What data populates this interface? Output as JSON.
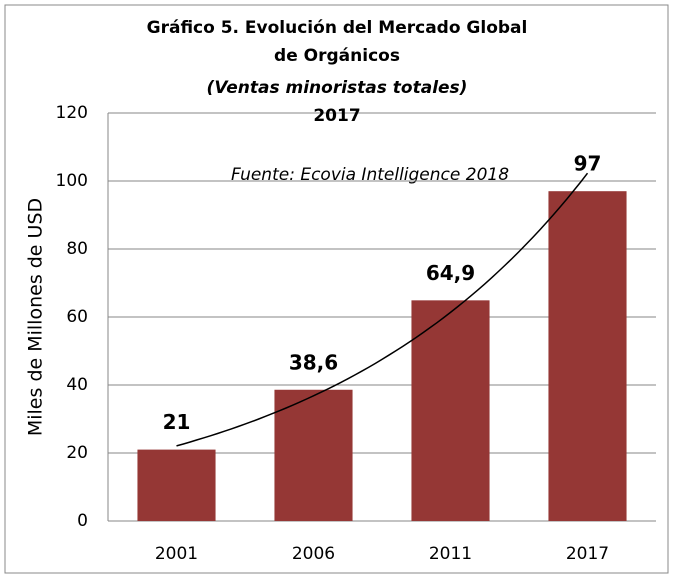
{
  "chart_data": {
    "type": "bar",
    "title": "Gráfico 5. Evolución del Mercado Global de Orgánicos",
    "subtitle": "(Ventas minoristas totales)",
    "year": "2017",
    "annotation": "Fuente: Ecovia Intelligence 2018",
    "ylabel": "Miles de Millones de USD",
    "categories": [
      "2001",
      "2006",
      "2011",
      "2017"
    ],
    "values": [
      21,
      38.6,
      64.9,
      97
    ],
    "value_labels": [
      "21",
      "38,6",
      "64,9",
      "97"
    ],
    "color": "#953735",
    "ylim": [
      0,
      120
    ],
    "yticks": [
      0,
      20,
      40,
      60,
      80,
      100,
      120
    ],
    "grid": true,
    "trendline": "exponential"
  }
}
